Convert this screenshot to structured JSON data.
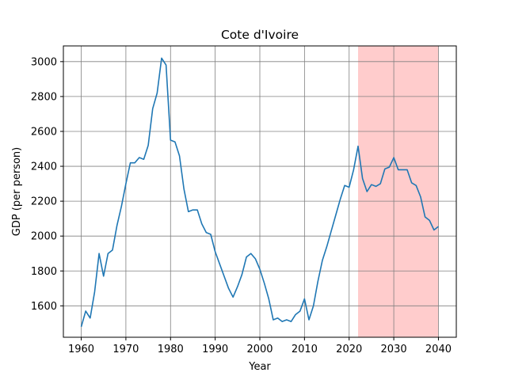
{
  "chart_data": {
    "type": "line",
    "title": "Cote d'Ivoire",
    "xlabel": "Year",
    "ylabel": "GDP (per person)",
    "xlim": [
      1956,
      2044
    ],
    "ylim": [
      1420,
      3090
    ],
    "xticks": [
      1960,
      1970,
      1980,
      1990,
      2000,
      2010,
      2020,
      2030,
      2040
    ],
    "yticks": [
      1600,
      1800,
      2000,
      2200,
      2400,
      2600,
      2800,
      3000
    ],
    "grid": true,
    "line_color": "#1f77b4",
    "highlight": {
      "x_start": 2022,
      "x_end": 2040,
      "color": "#ffcccc"
    },
    "series": [
      {
        "x": [
          1960,
          1961,
          1962,
          1963,
          1964,
          1965,
          1966,
          1967,
          1968,
          1969,
          1970,
          1971,
          1972,
          1973,
          1974,
          1975,
          1976,
          1977,
          1978,
          1979,
          1980,
          1981,
          1982,
          1983,
          1984,
          1985,
          1986,
          1987,
          1988,
          1989,
          1990,
          1991,
          1992,
          1993,
          1994,
          1995,
          1996,
          1997,
          1998,
          1999,
          2000,
          2001,
          2002,
          2003,
          2004,
          2005,
          2006,
          2007,
          2008,
          2009,
          2010,
          2011,
          2012,
          2013,
          2014,
          2015,
          2016,
          2017,
          2018,
          2019,
          2020,
          2021,
          2022,
          2023,
          2024,
          2025,
          2026,
          2027,
          2028,
          2029,
          2030,
          2031,
          2032,
          2033,
          2034,
          2035,
          2036,
          2037,
          2038,
          2039,
          2040
        ],
        "values": [
          1480,
          1570,
          1530,
          1680,
          1900,
          1770,
          1900,
          1920,
          2060,
          2170,
          2300,
          2420,
          2420,
          2450,
          2440,
          2520,
          2730,
          2820,
          3020,
          2980,
          2550,
          2540,
          2460,
          2270,
          2140,
          2150,
          2150,
          2070,
          2020,
          2010,
          1910,
          1840,
          1770,
          1700,
          1650,
          1710,
          1780,
          1880,
          1900,
          1870,
          1810,
          1730,
          1640,
          1520,
          1530,
          1510,
          1520,
          1510,
          1550,
          1570,
          1640,
          1520,
          1600,
          1740,
          1860,
          1940,
          2030,
          2120,
          2210,
          2290,
          2280,
          2380,
          2515,
          2330,
          2255,
          2295,
          2285,
          2300,
          2385,
          2395,
          2450,
          2380,
          2380,
          2380,
          2305,
          2290,
          2225,
          2110,
          2090,
          2035,
          2055
        ]
      }
    ]
  }
}
